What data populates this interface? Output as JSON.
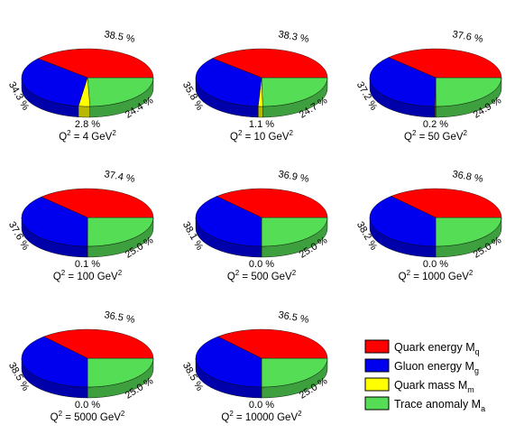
{
  "chart_data": {
    "type": "pie",
    "series_keys": [
      "quark_energy",
      "gluon_energy",
      "quark_mass",
      "trace_anomaly"
    ],
    "colors": {
      "quark_energy": "#ff0000",
      "gluon_energy": "#0000ee",
      "quark_mass": "#ffff00",
      "trace_anomaly": "#55dd55"
    },
    "legend": {
      "placement": "bottom-right",
      "entries": [
        {
          "key": "quark_energy",
          "text": "Quark energy M",
          "sub": "q"
        },
        {
          "key": "gluon_energy",
          "text": "Gluon energy M",
          "sub": "g"
        },
        {
          "key": "quark_mass",
          "text": "Quark mass M",
          "sub": "m"
        },
        {
          "key": "trace_anomaly",
          "text": "Trace anomaly M",
          "sub": "a"
        }
      ]
    },
    "pies": [
      {
        "label": "Q",
        "sup": "2",
        "value_text": " = 4 GeV",
        "unit_sup": "2",
        "values": {
          "quark_energy": 38.5,
          "gluon_energy": 34.3,
          "quark_mass": 2.8,
          "trace_anomaly": 24.4
        },
        "labels": {
          "quark_energy": "38.5 %",
          "gluon_energy": "34.3 %",
          "quark_mass": "2.8 %",
          "trace_anomaly": "24.4 %"
        }
      },
      {
        "label": "Q",
        "sup": "2",
        "value_text": " = 10 GeV",
        "unit_sup": "2",
        "values": {
          "quark_energy": 38.3,
          "gluon_energy": 35.8,
          "quark_mass": 1.1,
          "trace_anomaly": 24.7
        },
        "labels": {
          "quark_energy": "38.3 %",
          "gluon_energy": "35.8 %",
          "quark_mass": "1.1 %",
          "trace_anomaly": "24.7 %"
        }
      },
      {
        "label": "Q",
        "sup": "2",
        "value_text": " = 50 GeV",
        "unit_sup": "2",
        "values": {
          "quark_energy": 37.6,
          "gluon_energy": 37.2,
          "quark_mass": 0.2,
          "trace_anomaly": 24.9
        },
        "labels": {
          "quark_energy": "37.6 %",
          "gluon_energy": "37.2 %",
          "quark_mass": "0.2 %",
          "trace_anomaly": "24.9 %"
        }
      },
      {
        "label": "Q",
        "sup": "2",
        "value_text": " = 100 GeV",
        "unit_sup": "2",
        "values": {
          "quark_energy": 37.4,
          "gluon_energy": 37.6,
          "quark_mass": 0.1,
          "trace_anomaly": 25.0
        },
        "labels": {
          "quark_energy": "37.4 %",
          "gluon_energy": "37.6 %",
          "quark_mass": "0.1 %",
          "trace_anomaly": "25.0 %"
        }
      },
      {
        "label": "Q",
        "sup": "2",
        "value_text": " = 500 GeV",
        "unit_sup": "2",
        "values": {
          "quark_energy": 36.9,
          "gluon_energy": 38.1,
          "quark_mass": 0.0,
          "trace_anomaly": 25.0
        },
        "labels": {
          "quark_energy": "36.9 %",
          "gluon_energy": "38.1 %",
          "quark_mass": "0.0 %",
          "trace_anomaly": "25.0 %"
        }
      },
      {
        "label": "Q",
        "sup": "2",
        "value_text": " = 1000 GeV",
        "unit_sup": "2",
        "values": {
          "quark_energy": 36.8,
          "gluon_energy": 38.2,
          "quark_mass": 0.0,
          "trace_anomaly": 25.0
        },
        "labels": {
          "quark_energy": "36.8 %",
          "gluon_energy": "38.2 %",
          "quark_mass": "0.0 %",
          "trace_anomaly": "25.0 %"
        }
      },
      {
        "label": "Q",
        "sup": "2",
        "value_text": " = 5000 GeV",
        "unit_sup": "2",
        "values": {
          "quark_energy": 36.5,
          "gluon_energy": 38.5,
          "quark_mass": 0.0,
          "trace_anomaly": 25.0
        },
        "labels": {
          "quark_energy": "36.5 %",
          "gluon_energy": "38.5 %",
          "quark_mass": "0.0 %",
          "trace_anomaly": "25.0 %"
        }
      },
      {
        "label": "Q",
        "sup": "2",
        "value_text": " = 10000 GeV",
        "unit_sup": "2",
        "values": {
          "quark_energy": 36.5,
          "gluon_energy": 38.5,
          "quark_mass": 0.0,
          "trace_anomaly": 25.0
        },
        "labels": {
          "quark_energy": "36.5 %",
          "gluon_energy": "38.5 %",
          "quark_mass": "0.0 %",
          "trace_anomaly": "25.0 %"
        }
      }
    ]
  }
}
